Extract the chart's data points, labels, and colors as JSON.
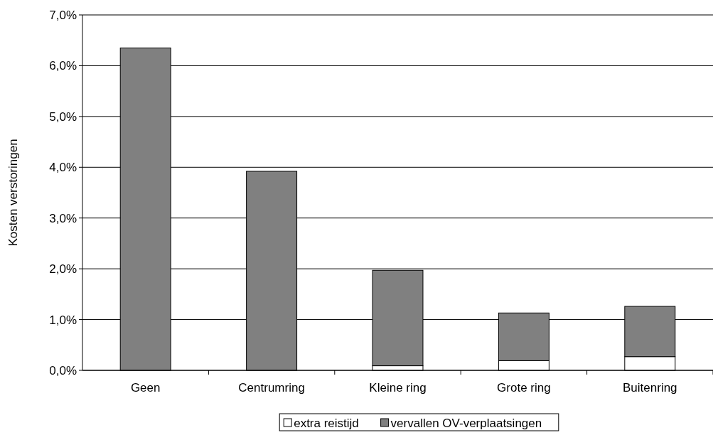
{
  "chart_data": {
    "type": "bar",
    "ylabel": "Kosten verstoringen",
    "categories": [
      "Geen",
      "Centrumring",
      "Kleine ring",
      "Grote ring",
      "Buitenring"
    ],
    "series": [
      {
        "name": "extra reistijd",
        "color": "#ffffff",
        "values": [
          0,
          null,
          0.09,
          0.19,
          0.27
        ]
      },
      {
        "name": "vervallen OV-verplaatsingen",
        "color": "#808080",
        "values": [
          6.35,
          3.92,
          1.88,
          0.94,
          0.99
        ]
      }
    ],
    "stacked": true,
    "ylim": [
      0,
      7
    ],
    "yticks": [
      {
        "value": 0,
        "label": "0,0%"
      },
      {
        "value": 1,
        "label": "1,0%"
      },
      {
        "value": 2,
        "label": "2,0%"
      },
      {
        "value": 3,
        "label": "3,0%"
      },
      {
        "value": 4,
        "label": "4,0%"
      },
      {
        "value": 5,
        "label": "5,0%"
      },
      {
        "value": 6,
        "label": "6,0%"
      },
      {
        "value": 7,
        "label": "7,0%"
      }
    ],
    "grid": "y",
    "legend": "bottom"
  }
}
